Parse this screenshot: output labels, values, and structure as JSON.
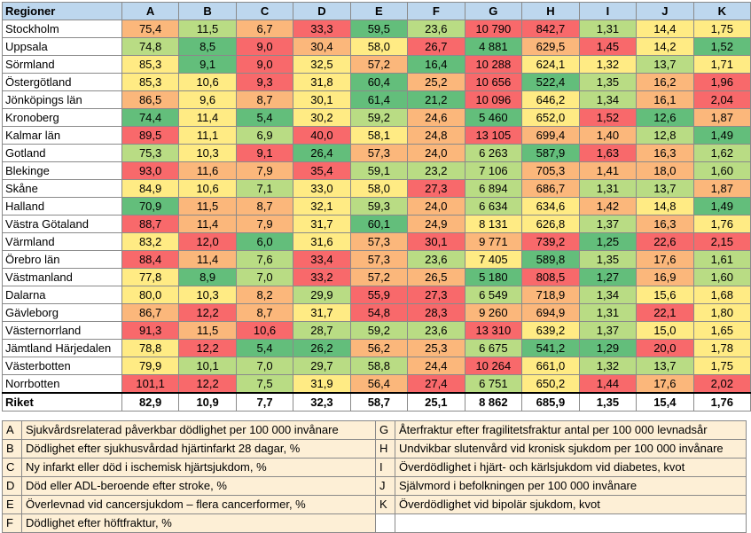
{
  "header": {
    "region_label": "Regioner",
    "columns": [
      "A",
      "B",
      "C",
      "D",
      "E",
      "F",
      "G",
      "H",
      "I",
      "J",
      "K"
    ]
  },
  "colors": {
    "green": "#63be7b",
    "light_green": "#b9dc84",
    "yellow": "#ffeb84",
    "orange": "#fbb77b",
    "red": "#f8696b",
    "header": "#bdd7ee",
    "legend": "#fdefd6"
  },
  "rows": [
    {
      "region": "Stockholm",
      "values": [
        "75,4",
        "11,5",
        "6,7",
        "33,3",
        "59,5",
        "23,6",
        "10 790",
        "842,7",
        "1,31",
        "14,4",
        "1,75"
      ]
    },
    {
      "region": "Uppsala",
      "values": [
        "74,8",
        "8,5",
        "9,0",
        "30,4",
        "58,0",
        "26,7",
        "4 881",
        "629,5",
        "1,45",
        "14,2",
        "1,52"
      ]
    },
    {
      "region": "Sörmland",
      "values": [
        "85,3",
        "9,1",
        "9,0",
        "32,5",
        "57,2",
        "16,4",
        "10 288",
        "624,1",
        "1,32",
        "13,7",
        "1,71"
      ]
    },
    {
      "region": "Östergötland",
      "values": [
        "85,3",
        "10,6",
        "9,3",
        "31,8",
        "60,4",
        "25,2",
        "10 656",
        "522,4",
        "1,35",
        "16,2",
        "1,96"
      ]
    },
    {
      "region": "Jönköpings län",
      "values": [
        "86,5",
        "9,6",
        "8,7",
        "30,1",
        "61,4",
        "21,2",
        "10 096",
        "646,2",
        "1,34",
        "16,1",
        "2,04"
      ]
    },
    {
      "region": "Kronoberg",
      "values": [
        "74,4",
        "11,4",
        "5,4",
        "30,2",
        "59,2",
        "24,6",
        "5 460",
        "652,0",
        "1,52",
        "12,6",
        "1,87"
      ]
    },
    {
      "region": "Kalmar län",
      "values": [
        "89,5",
        "11,1",
        "6,9",
        "40,0",
        "58,1",
        "24,8",
        "13 105",
        "699,4",
        "1,40",
        "12,8",
        "1,49"
      ]
    },
    {
      "region": "Gotland",
      "values": [
        "75,3",
        "10,3",
        "9,1",
        "26,4",
        "57,3",
        "24,0",
        "6 263",
        "587,9",
        "1,63",
        "16,3",
        "1,62"
      ]
    },
    {
      "region": "Blekinge",
      "values": [
        "93,0",
        "11,6",
        "7,9",
        "35,4",
        "59,1",
        "23,2",
        "7 106",
        "705,3",
        "1,41",
        "18,0",
        "1,60"
      ]
    },
    {
      "region": "Skåne",
      "values": [
        "84,9",
        "10,6",
        "7,1",
        "33,0",
        "58,0",
        "27,3",
        "6 894",
        "686,7",
        "1,31",
        "13,7",
        "1,87"
      ]
    },
    {
      "region": "Halland",
      "values": [
        "70,9",
        "11,5",
        "8,7",
        "32,1",
        "59,3",
        "24,0",
        "6 634",
        "634,6",
        "1,42",
        "14,8",
        "1,49"
      ]
    },
    {
      "region": "Västra Götaland",
      "values": [
        "88,7",
        "11,4",
        "7,9",
        "31,7",
        "60,1",
        "24,9",
        "8 131",
        "626,8",
        "1,37",
        "16,3",
        "1,76"
      ]
    },
    {
      "region": "Värmland",
      "values": [
        "83,2",
        "12,0",
        "6,0",
        "31,6",
        "57,3",
        "30,1",
        "9 771",
        "739,2",
        "1,25",
        "22,6",
        "2,15"
      ]
    },
    {
      "region": "Örebro län",
      "values": [
        "88,4",
        "11,4",
        "7,6",
        "33,4",
        "57,3",
        "23,6",
        "7 405",
        "589,8",
        "1,35",
        "17,6",
        "1,61"
      ]
    },
    {
      "region": "Västmanland",
      "values": [
        "77,8",
        "8,9",
        "7,0",
        "33,2",
        "57,2",
        "26,5",
        "5 180",
        "808,5",
        "1,27",
        "16,9",
        "1,60"
      ]
    },
    {
      "region": "Dalarna",
      "values": [
        "80,0",
        "10,3",
        "8,2",
        "29,9",
        "55,9",
        "27,3",
        "6 549",
        "718,9",
        "1,34",
        "15,6",
        "1,68"
      ]
    },
    {
      "region": "Gävleborg",
      "values": [
        "86,7",
        "12,2",
        "8,7",
        "31,7",
        "54,8",
        "28,3",
        "9 260",
        "694,9",
        "1,31",
        "22,1",
        "1,80"
      ]
    },
    {
      "region": "Västernorrland",
      "values": [
        "91,3",
        "11,5",
        "10,6",
        "28,7",
        "59,2",
        "23,6",
        "13 310",
        "639,2",
        "1,37",
        "15,0",
        "1,65"
      ]
    },
    {
      "region": "Jämtland Härjedalen",
      "values": [
        "78,8",
        "12,2",
        "5,4",
        "26,2",
        "56,2",
        "25,3",
        "6 675",
        "541,2",
        "1,29",
        "20,0",
        "1,78"
      ]
    },
    {
      "region": "Västerbotten",
      "values": [
        "79,9",
        "10,1",
        "7,0",
        "29,7",
        "58,8",
        "24,4",
        "10 264",
        "661,0",
        "1,32",
        "13,7",
        "1,75"
      ]
    },
    {
      "region": "Norrbotten",
      "values": [
        "101,1",
        "12,2",
        "7,5",
        "31,9",
        "56,4",
        "27,4",
        "6 751",
        "650,2",
        "1,44",
        "17,6",
        "2,02"
      ]
    }
  ],
  "cell_colors": [
    [
      "orange",
      "light_green",
      "orange",
      "red",
      "green",
      "light_green",
      "red",
      "red",
      "light_green",
      "yellow",
      "yellow"
    ],
    [
      "light_green",
      "green",
      "red",
      "orange",
      "yellow",
      "red",
      "green",
      "orange",
      "red",
      "yellow",
      "green"
    ],
    [
      "yellow",
      "green",
      "red",
      "yellow",
      "orange",
      "green",
      "red",
      "yellow",
      "yellow",
      "light_green",
      "yellow"
    ],
    [
      "yellow",
      "yellow",
      "red",
      "yellow",
      "green",
      "orange",
      "red",
      "green",
      "light_green",
      "orange",
      "red"
    ],
    [
      "orange",
      "yellow",
      "orange",
      "yellow",
      "green",
      "green",
      "red",
      "yellow",
      "light_green",
      "orange",
      "red"
    ],
    [
      "green",
      "yellow",
      "green",
      "yellow",
      "light_green",
      "orange",
      "green",
      "yellow",
      "red",
      "green",
      "orange"
    ],
    [
      "red",
      "yellow",
      "light_green",
      "red",
      "yellow",
      "orange",
      "red",
      "orange",
      "orange",
      "light_green",
      "green"
    ],
    [
      "light_green",
      "yellow",
      "red",
      "green",
      "orange",
      "orange",
      "light_green",
      "green",
      "red",
      "orange",
      "light_green"
    ],
    [
      "red",
      "orange",
      "orange",
      "red",
      "light_green",
      "light_green",
      "light_green",
      "orange",
      "orange",
      "orange",
      "light_green"
    ],
    [
      "yellow",
      "yellow",
      "light_green",
      "yellow",
      "yellow",
      "red",
      "light_green",
      "orange",
      "light_green",
      "light_green",
      "orange"
    ],
    [
      "green",
      "orange",
      "orange",
      "yellow",
      "light_green",
      "orange",
      "light_green",
      "yellow",
      "orange",
      "yellow",
      "green"
    ],
    [
      "red",
      "orange",
      "orange",
      "yellow",
      "green",
      "orange",
      "yellow",
      "yellow",
      "light_green",
      "orange",
      "yellow"
    ],
    [
      "yellow",
      "red",
      "green",
      "yellow",
      "orange",
      "red",
      "orange",
      "red",
      "green",
      "red",
      "red"
    ],
    [
      "red",
      "orange",
      "light_green",
      "red",
      "orange",
      "light_green",
      "yellow",
      "green",
      "light_green",
      "orange",
      "light_green"
    ],
    [
      "yellow",
      "green",
      "light_green",
      "red",
      "orange",
      "orange",
      "green",
      "red",
      "green",
      "orange",
      "light_green"
    ],
    [
      "yellow",
      "yellow",
      "orange",
      "light_green",
      "red",
      "red",
      "light_green",
      "orange",
      "light_green",
      "yellow",
      "yellow"
    ],
    [
      "orange",
      "red",
      "orange",
      "yellow",
      "red",
      "red",
      "orange",
      "orange",
      "light_green",
      "red",
      "yellow"
    ],
    [
      "red",
      "orange",
      "red",
      "light_green",
      "light_green",
      "light_green",
      "red",
      "yellow",
      "light_green",
      "yellow",
      "yellow"
    ],
    [
      "yellow",
      "red",
      "green",
      "green",
      "orange",
      "orange",
      "light_green",
      "green",
      "green",
      "red",
      "yellow"
    ],
    [
      "yellow",
      "light_green",
      "light_green",
      "light_green",
      "light_green",
      "orange",
      "red",
      "yellow",
      "light_green",
      "light_green",
      "yellow"
    ],
    [
      "red",
      "red",
      "light_green",
      "yellow",
      "orange",
      "red",
      "light_green",
      "yellow",
      "red",
      "orange",
      "red"
    ]
  ],
  "riket": {
    "label": "Riket",
    "values": [
      "82,9",
      "10,9",
      "7,7",
      "32,3",
      "58,7",
      "25,1",
      "8 862",
      "685,9",
      "1,35",
      "15,4",
      "1,76"
    ]
  },
  "legend": {
    "left": [
      {
        "key": "A",
        "text": "Sjukvårdsrelaterad påverkbar dödlighet per 100 000 invånare"
      },
      {
        "key": "B",
        "text": "Dödlighet efter sjukhusvårdad hjärtinfarkt 28 dagar, %"
      },
      {
        "key": "C",
        "text": "Ny infarkt eller död i ischemisk hjärtsjukdom, %"
      },
      {
        "key": "D",
        "text": "Död eller ADL-beroende efter stroke, %"
      },
      {
        "key": "E",
        "text": "Överlevnad vid cancersjukdom – flera cancerformer, %"
      },
      {
        "key": "F",
        "text": "Dödlighet efter höftfraktur, %"
      }
    ],
    "right": [
      {
        "key": "G",
        "text": "Återfraktur efter fragilitetsfraktur antal per 100 000 levnadsår"
      },
      {
        "key": "H",
        "text": "Undvikbar slutenvård vid kronisk sjukdom per 100 000 invånare"
      },
      {
        "key": "I",
        "text": "Överdödlighet i hjärt- och kärlsjukdom vid diabetes, kvot"
      },
      {
        "key": "J",
        "text": "Självmord i befolkningen per 100 000 invånare"
      },
      {
        "key": "K",
        "text": "Överdödlighet vid bipolär sjukdom, kvot"
      }
    ]
  }
}
